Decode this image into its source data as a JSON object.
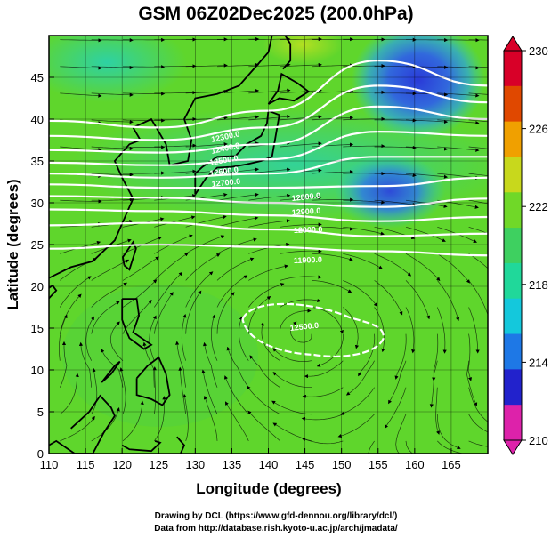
{
  "title": "GSM 06Z02Dec2025 (200.0hPa)",
  "x_axis": {
    "label": "Longitude (degrees)",
    "range": [
      110,
      170
    ],
    "ticks": [
      "110",
      "115",
      "120",
      "125",
      "130",
      "135",
      "140",
      "145",
      "150",
      "155",
      "160",
      "165"
    ]
  },
  "y_axis": {
    "label": "Latitude (degrees)",
    "range": [
      0,
      50
    ],
    "ticks": [
      "0",
      "5",
      "10",
      "15",
      "20",
      "25",
      "30",
      "35",
      "40",
      "45"
    ]
  },
  "colorbar": {
    "unit": "",
    "range": [
      210,
      230
    ],
    "tick_labels": [
      "210",
      "214",
      "218",
      "222",
      "226",
      "230"
    ],
    "colors": [
      "#dd22aa",
      "#2222cc",
      "#1e78e6",
      "#14c8dc",
      "#20d89a",
      "#3ed060",
      "#70d828",
      "#c8d81c",
      "#f0a000",
      "#e04800",
      "#d80028"
    ]
  },
  "contours": {
    "labels": [
      "12300.0",
      "12400.0",
      "12500.0",
      "12600.0",
      "12700.0",
      "12800.0",
      "12900.0",
      "12000.0",
      "11900.0",
      "12500.0"
    ]
  },
  "credits": {
    "line1": "Drawing by DCL (https://www.gfd-dennou.org/library/dcl/)",
    "line2": "Data from http://database.rish.kyoto-u.ac.jp/arch/jmadata/"
  },
  "chart_data": {
    "type": "heatmap",
    "title": "GSM 06Z02Dec2025 (200.0hPa)",
    "xlabel": "Longitude (degrees)",
    "ylabel": "Latitude (degrees)",
    "xlim": [
      110,
      170
    ],
    "ylim": [
      0,
      50
    ],
    "x_ticks": [
      110,
      115,
      120,
      125,
      130,
      135,
      140,
      145,
      150,
      155,
      160,
      165
    ],
    "y_ticks": [
      0,
      5,
      10,
      15,
      20,
      25,
      30,
      35,
      40,
      45
    ],
    "colorbar_range": [
      210,
      230
    ],
    "colorbar_ticks": [
      210,
      214,
      218,
      222,
      226,
      230
    ],
    "grid": true,
    "fields": {
      "temperature_cold_pools": [
        {
          "lon": 160,
          "lat": 45,
          "value": 213
        },
        {
          "lon": 157,
          "lat": 33,
          "value": 215
        },
        {
          "lon": 113,
          "lat": 47,
          "value": 217
        }
      ],
      "geopotential_contour_lines": [
        {
          "lon": [
            110,
            125,
            140,
            155,
            170
          ],
          "lat": [
            39.8,
            39.0,
            41.0,
            47.0,
            44.0
          ]
        },
        {
          "lon": [
            110,
            125,
            140,
            155,
            170
          ],
          "lat": [
            38.0,
            37.5,
            39.0,
            44.0,
            42.0
          ]
        },
        {
          "lon": [
            110,
            125,
            140,
            155,
            170
          ],
          "lat": [
            36.3,
            36.0,
            37.0,
            41.5,
            40.0
          ]
        },
        {
          "lon": [
            110,
            125,
            140,
            155,
            170
          ],
          "lat": [
            34.8,
            34.5,
            35.2,
            38.5,
            38.0
          ]
        },
        {
          "lon": [
            110,
            125,
            140,
            155,
            170
          ],
          "lat": [
            33.5,
            33.0,
            33.5,
            35.5,
            35.5
          ]
        },
        {
          "lon": [
            110,
            125,
            140,
            155,
            170
          ],
          "lat": [
            32.2,
            31.8,
            31.8,
            32.0,
            33.0
          ]
        },
        {
          "lon": [
            110,
            125,
            140,
            155,
            170
          ],
          "lat": [
            30.8,
            30.6,
            30.0,
            29.5,
            30.5
          ]
        },
        {
          "lon": [
            110,
            125,
            140,
            155,
            170
          ],
          "lat": [
            29.2,
            29.0,
            28.5,
            27.8,
            28.3
          ]
        },
        {
          "lon": [
            110,
            125,
            140,
            155,
            170
          ],
          "lat": [
            27.3,
            27.6,
            26.8,
            26.0,
            26.3
          ]
        },
        {
          "lon": [
            110,
            125,
            140,
            155,
            170
          ],
          "lat": [
            24.5,
            25.0,
            24.7,
            24.2,
            23.7
          ]
        }
      ],
      "high_pressure_contour": {
        "label": "12500.0",
        "center_lon": 145,
        "center_lat": 15
      }
    }
  }
}
